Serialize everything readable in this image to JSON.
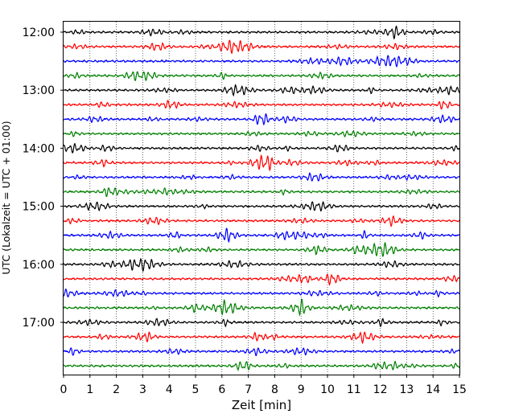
{
  "chart_data": {
    "type": "line",
    "title": "",
    "xlabel": "Zeit  [min]",
    "ylabel": "UTC (Lokalzeit = UTC + 01:00)",
    "xlim": [
      0,
      15
    ],
    "x_ticks": [
      "0",
      "1",
      "2",
      "3",
      "4",
      "5",
      "6",
      "7",
      "8",
      "9",
      "10",
      "11",
      "12",
      "13",
      "14",
      "15"
    ],
    "y_ticks": [
      "12:00",
      "13:00",
      "14:00",
      "15:00",
      "16:00",
      "17:00"
    ],
    "trace_start_times": [
      "12:00",
      "12:15",
      "12:30",
      "12:45",
      "13:00",
      "13:15",
      "13:30",
      "13:45",
      "14:00",
      "14:15",
      "14:30",
      "14:45",
      "15:00",
      "15:15",
      "15:30",
      "15:45",
      "16:00",
      "16:15",
      "16:30",
      "16:45",
      "17:00",
      "17:15",
      "17:30",
      "17:45"
    ],
    "trace_colors": [
      "#000000",
      "#ff0000",
      "#0000ff",
      "#008000"
    ],
    "grid": "vertical dotted lines at each minute"
  }
}
